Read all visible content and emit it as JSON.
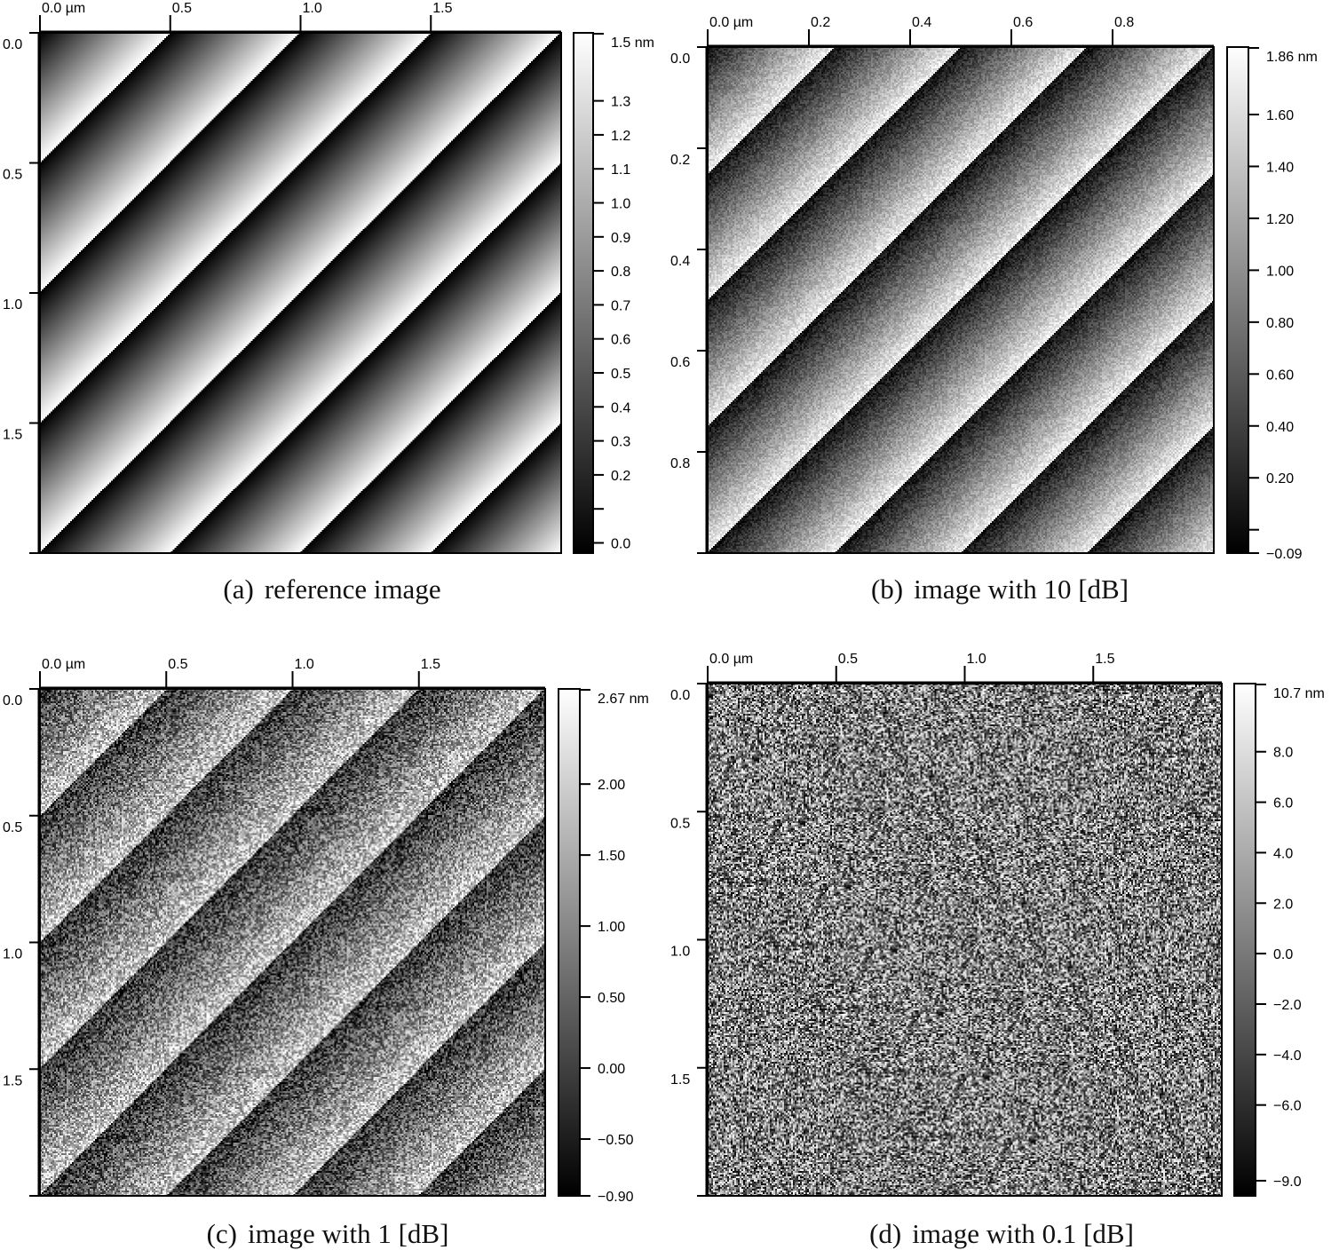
{
  "chart_data": [
    {
      "type": "heatmap",
      "panel_letter": "(a)",
      "caption": "reference image",
      "x_ticks": [
        {
          "value": 0.0,
          "label": "0.0 µm"
        },
        {
          "value": 0.5,
          "label": "0.5"
        },
        {
          "value": 1.0,
          "label": "1.0"
        },
        {
          "value": 1.5,
          "label": "1.5"
        }
      ],
      "y_ticks": [
        {
          "value": 0.0,
          "label": "0.0"
        },
        {
          "value": 0.5,
          "label": "0.5"
        },
        {
          "value": 1.0,
          "label": "1.0"
        },
        {
          "value": 1.5,
          "label": "1.5"
        }
      ],
      "x_range": [
        0,
        2.0
      ],
      "y_range": [
        0,
        2.0
      ],
      "colorbar": {
        "range": [
          -0.03,
          1.5
        ],
        "max_label": "1.5 nm",
        "ticks": [
          {
            "value": 1.3,
            "label": "1.3"
          },
          {
            "value": 1.2,
            "label": "1.2"
          },
          {
            "value": 1.1,
            "label": "1.1"
          },
          {
            "value": 1.0,
            "label": "1.0"
          },
          {
            "value": 0.9,
            "label": "0.9"
          },
          {
            "value": 0.8,
            "label": "0.8"
          },
          {
            "value": 0.7,
            "label": "0.7"
          },
          {
            "value": 0.6,
            "label": "0.6"
          },
          {
            "value": 0.5,
            "label": "0.5"
          },
          {
            "value": 0.4,
            "label": "0.4"
          },
          {
            "value": 0.3,
            "label": "0.3"
          },
          {
            "value": 0.2,
            "label": "0.2"
          },
          {
            "value": 0.1,
            "label": ""
          },
          {
            "value": 0.0,
            "label": "0.0"
          }
        ],
        "colormap": "grayscale"
      },
      "stripe_period": 0.5,
      "stripe_direction": "diagonal, ramp dark to light",
      "noise": 0.0
    },
    {
      "type": "heatmap",
      "panel_letter": "(b)",
      "caption": "image with 10 [dB]",
      "x_ticks": [
        {
          "value": 0.0,
          "label": "0.0 µm"
        },
        {
          "value": 0.2,
          "label": "0.2"
        },
        {
          "value": 0.4,
          "label": "0.4"
        },
        {
          "value": 0.6,
          "label": "0.6"
        },
        {
          "value": 0.8,
          "label": "0.8"
        }
      ],
      "y_ticks": [
        {
          "value": 0.0,
          "label": "0.0"
        },
        {
          "value": 0.2,
          "label": "0.2"
        },
        {
          "value": 0.4,
          "label": "0.4"
        },
        {
          "value": 0.6,
          "label": "0.6"
        },
        {
          "value": 0.8,
          "label": "0.8"
        }
      ],
      "x_range": [
        0,
        1.0
      ],
      "y_range": [
        0,
        1.0
      ],
      "colorbar": {
        "range": [
          -0.09,
          1.86
        ],
        "max_label": "1.86 nm",
        "ticks": [
          {
            "value": 1.6,
            "label": "1.60"
          },
          {
            "value": 1.4,
            "label": "1.40"
          },
          {
            "value": 1.2,
            "label": "1.20"
          },
          {
            "value": 1.0,
            "label": "1.00"
          },
          {
            "value": 0.8,
            "label": "0.80"
          },
          {
            "value": 0.6,
            "label": "0.60"
          },
          {
            "value": 0.4,
            "label": "0.40"
          },
          {
            "value": 0.2,
            "label": "0.20"
          },
          {
            "value": 0.0,
            "label": ""
          },
          {
            "value": -0.09,
            "label": "−0.09"
          }
        ],
        "colormap": "grayscale"
      },
      "stripe_period": 0.25,
      "stripe_direction": "diagonal, ramp dark to light",
      "noise": 0.12
    },
    {
      "type": "heatmap",
      "panel_letter": "(c)",
      "caption": "image with 1 [dB]",
      "x_ticks": [
        {
          "value": 0.0,
          "label": "0.0 µm"
        },
        {
          "value": 0.5,
          "label": "0.5"
        },
        {
          "value": 1.0,
          "label": "1.0"
        },
        {
          "value": 1.5,
          "label": "1.5"
        }
      ],
      "y_ticks": [
        {
          "value": 0.0,
          "label": "0.0"
        },
        {
          "value": 0.5,
          "label": "0.5"
        },
        {
          "value": 1.0,
          "label": "1.0"
        },
        {
          "value": 1.5,
          "label": "1.5"
        }
      ],
      "x_range": [
        0,
        2.0
      ],
      "y_range": [
        0,
        2.0
      ],
      "colorbar": {
        "range": [
          -0.9,
          2.67
        ],
        "max_label": "2.67 nm",
        "ticks": [
          {
            "value": 2.0,
            "label": "2.00"
          },
          {
            "value": 1.5,
            "label": "1.50"
          },
          {
            "value": 1.0,
            "label": "1.00"
          },
          {
            "value": 0.5,
            "label": "0.50"
          },
          {
            "value": 0.0,
            "label": "0.00"
          },
          {
            "value": -0.5,
            "label": "−0.50"
          },
          {
            "value": -0.9,
            "label": "−0.90"
          }
        ],
        "colormap": "grayscale"
      },
      "stripe_period": 0.5,
      "stripe_direction": "diagonal, light to dark",
      "noise": 0.38
    },
    {
      "type": "heatmap",
      "panel_letter": "(d)",
      "caption": "image with 0.1 [dB]",
      "x_ticks": [
        {
          "value": 0.0,
          "label": "0.0 µm"
        },
        {
          "value": 0.5,
          "label": "0.5"
        },
        {
          "value": 1.0,
          "label": "1.0"
        },
        {
          "value": 1.5,
          "label": "1.5"
        }
      ],
      "y_ticks": [
        {
          "value": 0.0,
          "label": "0.0"
        },
        {
          "value": 0.5,
          "label": "0.5"
        },
        {
          "value": 1.0,
          "label": "1.0"
        },
        {
          "value": 1.5,
          "label": "1.5"
        }
      ],
      "x_range": [
        0,
        2.0
      ],
      "y_range": [
        0,
        2.0
      ],
      "colorbar": {
        "range": [
          -9.6,
          10.7
        ],
        "max_label": "10.7 nm",
        "ticks": [
          {
            "value": 8.0,
            "label": "8.0"
          },
          {
            "value": 6.0,
            "label": "6.0"
          },
          {
            "value": 4.0,
            "label": "4.0"
          },
          {
            "value": 2.0,
            "label": "2.0"
          },
          {
            "value": 0.0,
            "label": "0.0"
          },
          {
            "value": -2.0,
            "label": "−2.0"
          },
          {
            "value": -4.0,
            "label": "−4.0"
          },
          {
            "value": -6.0,
            "label": "−6.0"
          },
          {
            "value": -9.0,
            "label": "−9.0"
          }
        ],
        "colormap": "grayscale"
      },
      "stripe_period": 0.5,
      "stripe_direction": "diagonal",
      "noise": 1.0
    }
  ]
}
